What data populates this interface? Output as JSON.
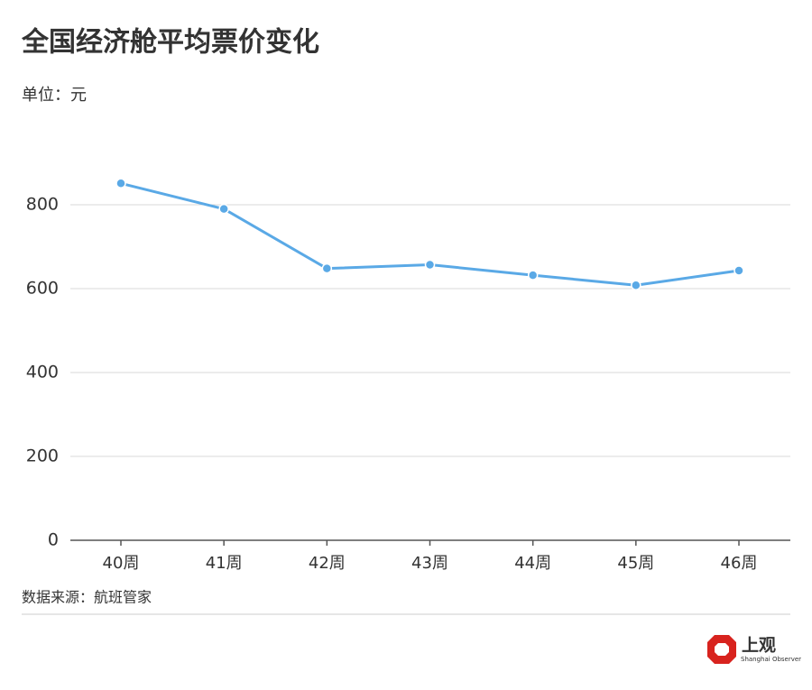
{
  "chart_data": {
    "type": "line",
    "title": "全国经济舱平均票价变化",
    "subtitle": "单位：元",
    "categories": [
      "40周",
      "41周",
      "42周",
      "43周",
      "44周",
      "45周",
      "46周"
    ],
    "series": [
      {
        "name": "平均票价",
        "color": "#5aa9e6",
        "values": [
          851,
          790,
          648,
          657,
          632,
          608,
          643
        ]
      }
    ],
    "ylim": [
      0,
      900
    ],
    "yticks": [
      0,
      200,
      400,
      600,
      800
    ],
    "grid": true
  },
  "footer": {
    "source": "数据来源：航班管家",
    "logo_text": "上观",
    "logo_subtext": "Shanghai Observer"
  }
}
